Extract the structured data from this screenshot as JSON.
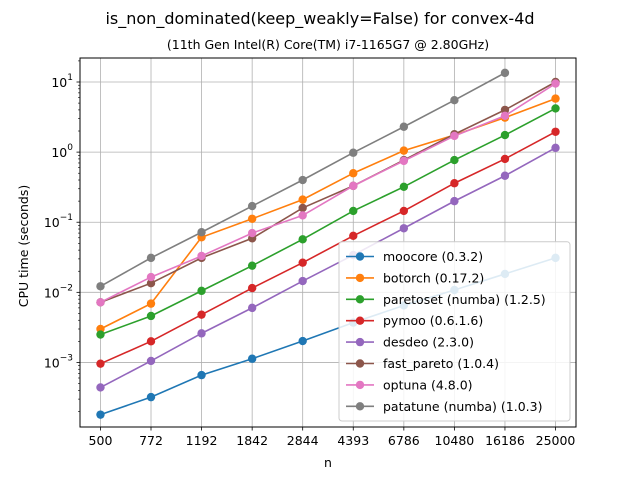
{
  "chart_data": {
    "type": "line",
    "title": "is_non_dominated(keep_weakly=False) for convex-4d",
    "subtitle": "(11th Gen Intel(R) Core(TM) i7-1165G7 @ 2.80GHz)",
    "xlabel": "n",
    "ylabel": "CPU time (seconds)",
    "x": [
      500,
      772,
      1192,
      1842,
      2844,
      4393,
      6786,
      10480,
      16186,
      25000
    ],
    "x_tick_labels": [
      "500",
      "772",
      "1192",
      "1842",
      "2844",
      "4393",
      "6786",
      "10480",
      "16186",
      "25000"
    ],
    "xscale": "log",
    "yscale": "log",
    "ylim": [
      0.00012,
      22
    ],
    "y_tick_labels": [
      {
        "value": 0.001,
        "base": "10",
        "exp": "−3"
      },
      {
        "value": 0.01,
        "base": "10",
        "exp": "−2"
      },
      {
        "value": 0.1,
        "base": "10",
        "exp": "−1"
      },
      {
        "value": 1,
        "base": "10",
        "exp": "0"
      },
      {
        "value": 10,
        "base": "10",
        "exp": "1"
      }
    ],
    "grid": true,
    "legend_position": "lower right",
    "series": [
      {
        "name": "moocore (0.3.2)",
        "color": "#1f77b4",
        "values": [
          0.00018,
          0.00032,
          0.00066,
          0.00113,
          0.00202,
          0.0037,
          0.0065,
          0.0108,
          0.0183,
          0.031
        ]
      },
      {
        "name": "botorch (0.17.2)",
        "color": "#ff7f0e",
        "values": [
          0.003,
          0.0069,
          0.061,
          0.112,
          0.21,
          0.5,
          1.05,
          1.75,
          3.1,
          5.8
        ]
      },
      {
        "name": "paretoset (numba) (1.2.5)",
        "color": "#2ca02c",
        "values": [
          0.0025,
          0.0046,
          0.0105,
          0.024,
          0.057,
          0.145,
          0.32,
          0.77,
          1.75,
          4.2
        ]
      },
      {
        "name": "pymoo (0.6.1.6)",
        "color": "#d62728",
        "values": [
          0.00096,
          0.002,
          0.0048,
          0.0115,
          0.0265,
          0.064,
          0.145,
          0.36,
          0.8,
          1.95
        ]
      },
      {
        "name": "desdeo (2.3.0)",
        "color": "#9467bd",
        "values": [
          0.00044,
          0.00105,
          0.0026,
          0.006,
          0.0145,
          0.034,
          0.082,
          0.2,
          0.46,
          1.15
        ]
      },
      {
        "name": "fast_pareto (1.0.4)",
        "color": "#8c564b",
        "values": [
          0.0072,
          0.0135,
          0.031,
          0.059,
          0.16,
          0.33,
          0.77,
          1.8,
          4.0,
          10.0
        ]
      },
      {
        "name": "optuna (4.8.0)",
        "color": "#e377c2",
        "values": [
          0.0072,
          0.0165,
          0.033,
          0.07,
          0.125,
          0.33,
          0.75,
          1.7,
          3.3,
          9.5
        ]
      },
      {
        "name": "patatune (numba) (1.0.3)",
        "color": "#7f7f7f",
        "values": [
          0.0122,
          0.031,
          0.072,
          0.17,
          0.4,
          0.98,
          2.3,
          5.5,
          13.5,
          null
        ]
      }
    ]
  }
}
